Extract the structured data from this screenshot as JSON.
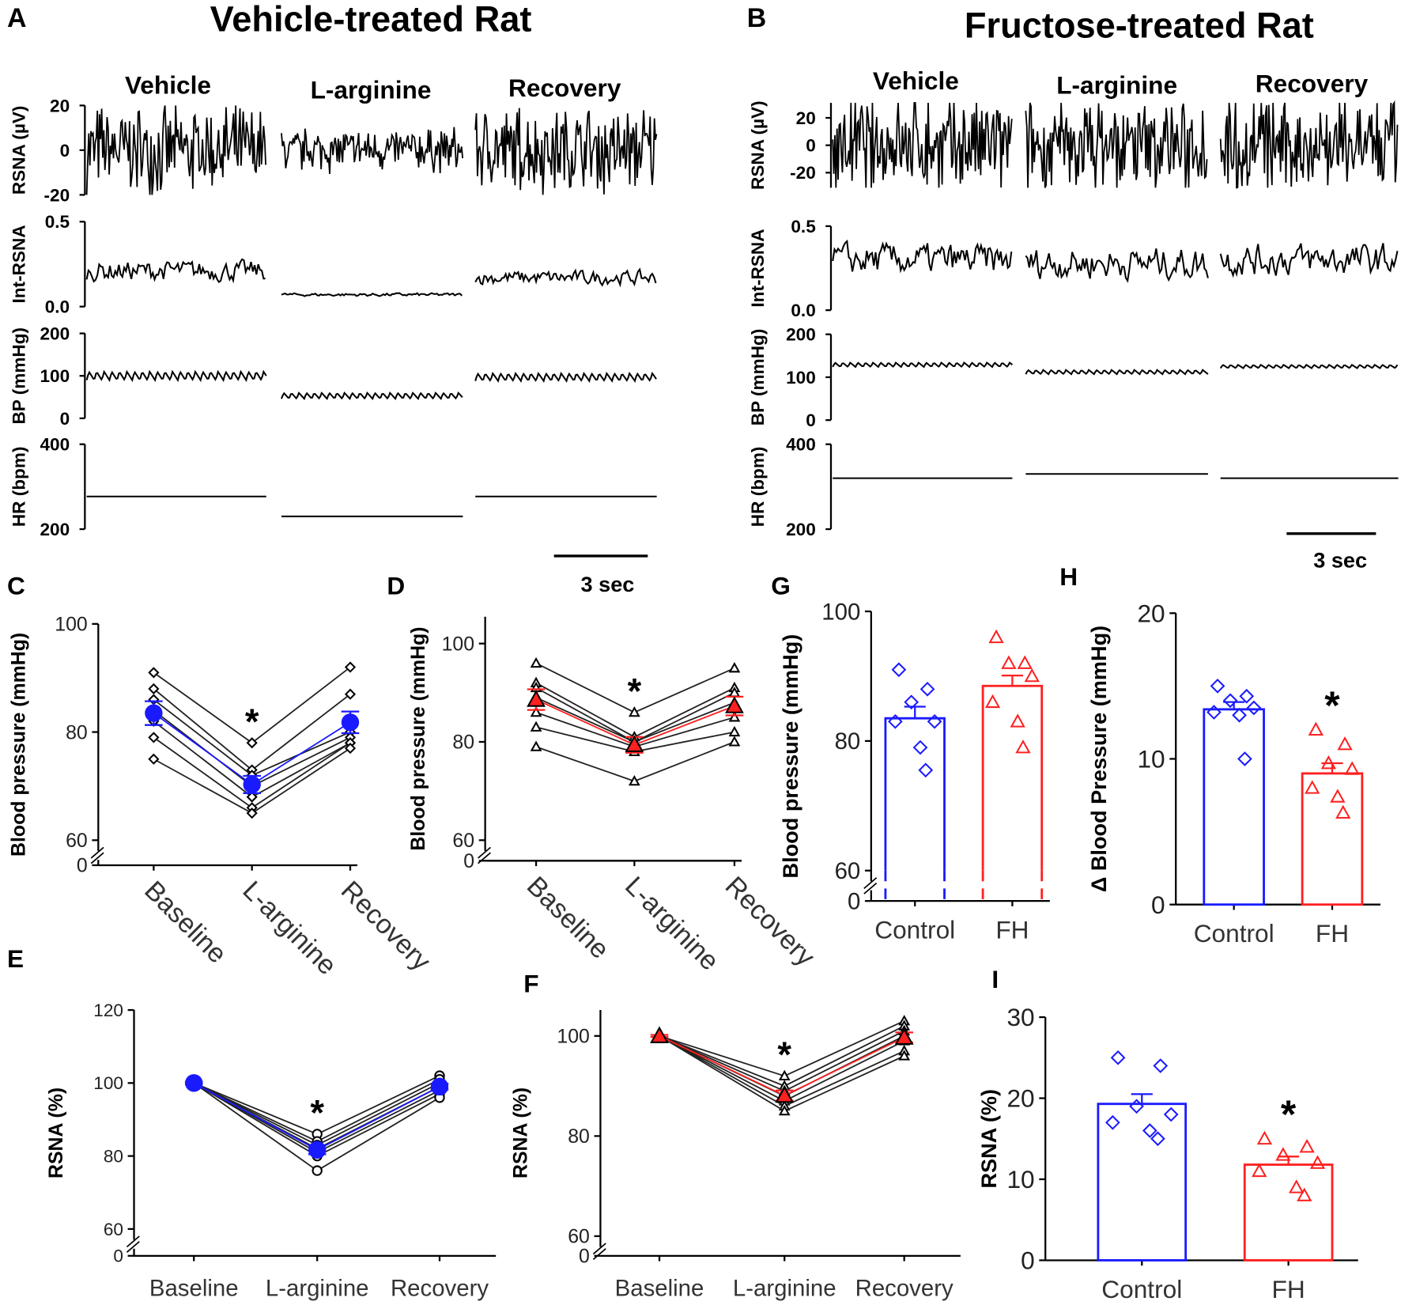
{
  "colors": {
    "control": "#1a1aff",
    "fh": "#ff2020",
    "ink": "#000000"
  },
  "panels": {
    "A": {
      "letter": "A",
      "title": "Vehicle-treated Rat",
      "conditions": [
        "Vehicle",
        "L-arginine",
        "Recovery"
      ],
      "scale_bar": "3 sec"
    },
    "B": {
      "letter": "B",
      "title": "Fructose-treated Rat",
      "conditions": [
        "Vehicle",
        "L-arginine",
        "Recovery"
      ],
      "scale_bar": "3 sec"
    }
  },
  "chart_data": [
    {
      "panel": "A",
      "type": "line",
      "traces": [
        {
          "ylabel": "RSNA (µV)",
          "yrange": [
            -20,
            20
          ],
          "ticks": [
            20,
            0,
            -20
          ],
          "tick_labels": [
            "20",
            "0",
            "-20"
          ],
          "level": [
            0,
            0,
            0
          ],
          "amplitude": [
            16,
            8,
            16
          ]
        },
        {
          "ylabel": "Int-RSNA",
          "yrange": [
            0,
            0.5
          ],
          "ticks": [
            0.5,
            0
          ],
          "tick_labels": [
            "0.5",
            "0.0"
          ],
          "level": [
            0.21,
            0.07,
            0.17
          ],
          "amplitude": [
            0.05,
            0.008,
            0.035
          ]
        },
        {
          "ylabel": "BP (mmHg)",
          "yrange": [
            0,
            200
          ],
          "ticks": [
            200,
            100,
            0
          ],
          "tick_labels": [
            "200",
            "100",
            "0"
          ],
          "level": [
            100,
            53,
            97
          ],
          "amplitude": [
            10,
            7,
            9
          ]
        },
        {
          "ylabel": "HR (bpm)",
          "yrange": [
            200,
            400
          ],
          "ticks": [
            400,
            200
          ],
          "tick_labels": [
            "400",
            "200"
          ],
          "level": [
            277,
            230,
            277
          ],
          "amplitude": [
            0,
            0,
            0
          ]
        }
      ]
    },
    {
      "panel": "B",
      "type": "line",
      "traces": [
        {
          "ylabel": "RSNA (µV)",
          "yrange": [
            -31,
            31
          ],
          "ticks": [
            20,
            0,
            -20
          ],
          "tick_labels": [
            "20",
            "0",
            "-20"
          ],
          "level": [
            0,
            0,
            0
          ],
          "amplitude": [
            30,
            28,
            30
          ]
        },
        {
          "ylabel": "Int-RSNA",
          "yrange": [
            0,
            0.5
          ],
          "ticks": [
            0.5,
            0
          ],
          "tick_labels": [
            "0.5",
            "0.0"
          ],
          "level": [
            0.3,
            0.28,
            0.3
          ],
          "amplitude": [
            0.08,
            0.08,
            0.08
          ]
        },
        {
          "ylabel": "BP (mmHg)",
          "yrange": [
            0,
            200
          ],
          "ticks": [
            200,
            100,
            0
          ],
          "tick_labels": [
            "200",
            "100",
            "0"
          ],
          "level": [
            129,
            112,
            125
          ],
          "amplitude": [
            5,
            5,
            4
          ]
        },
        {
          "ylabel": "HR (bpm)",
          "yrange": [
            200,
            400
          ],
          "ticks": [
            400,
            200
          ],
          "tick_labels": [
            "400",
            "200"
          ],
          "level": [
            320,
            330,
            320
          ],
          "amplitude": [
            0,
            0,
            0
          ]
        }
      ]
    },
    {
      "panel": "C",
      "letter": "C",
      "type": "line",
      "ylabel": "Blood pressure (mmHg)",
      "categories": [
        "Baseline",
        "L-arginine",
        "Recovery"
      ],
      "ticks": [
        100,
        80,
        60,
        0
      ],
      "tick_labels": [
        "100",
        "80",
        "60",
        "0"
      ],
      "axis_break": [
        0,
        60
      ],
      "marker": "diamond",
      "mean_marker": "circle",
      "mean_color": "#1a1aff",
      "subjects": [
        [
          91,
          78,
          92
        ],
        [
          88,
          73,
          87
        ],
        [
          86,
          72,
          80
        ],
        [
          84,
          70,
          79
        ],
        [
          82,
          68,
          78
        ],
        [
          79,
          66,
          78
        ],
        [
          75,
          65,
          77
        ]
      ],
      "mean": [
        83.5,
        70.3,
        81.8
      ],
      "sem": [
        2.2,
        1.6,
        2.0
      ],
      "annotation": "*",
      "annotation_at": "L-arginine"
    },
    {
      "panel": "D",
      "letter": "D",
      "type": "line",
      "ylabel": "Blood pressure (mmHg)",
      "categories": [
        "Baseline",
        "L-arginine",
        "Recovery"
      ],
      "ticks": [
        100,
        80,
        60,
        0
      ],
      "tick_labels": [
        "100",
        "80",
        "60",
        "0"
      ],
      "axis_break": [
        0,
        60
      ],
      "marker": "triangle",
      "mean_marker": "triangle",
      "mean_color": "#ff2020",
      "subjects": [
        [
          96,
          86,
          95
        ],
        [
          92,
          81,
          91
        ],
        [
          91,
          80,
          90
        ],
        [
          89,
          80,
          88
        ],
        [
          86,
          79,
          85
        ],
        [
          83,
          78,
          82
        ],
        [
          79,
          72,
          80
        ]
      ],
      "mean": [
        88.6,
        79.4,
        87.3
      ],
      "sem": [
        2.1,
        1.6,
        1.9
      ],
      "annotation": "*",
      "annotation_at": "L-arginine"
    },
    {
      "panel": "E",
      "letter": "E",
      "type": "line",
      "ylabel": "RSNA (%)",
      "categories": [
        "Baseline",
        "L-arginine",
        "Recovery"
      ],
      "ticks": [
        120,
        100,
        80,
        60,
        0
      ],
      "tick_labels": [
        "120",
        "100",
        "80",
        "60",
        "0"
      ],
      "axis_break": [
        0,
        60
      ],
      "marker": "circle",
      "mean_marker": "circle",
      "mean_color": "#1a1aff",
      "subjects": [
        [
          100,
          86,
          102
        ],
        [
          100,
          84,
          101
        ],
        [
          100,
          83,
          100
        ],
        [
          100,
          82,
          99
        ],
        [
          100,
          81,
          98
        ],
        [
          100,
          80,
          97
        ],
        [
          100,
          76,
          96
        ]
      ],
      "mean": [
        100,
        81.7,
        99
      ],
      "sem": [
        0.3,
        1.2,
        0.8
      ],
      "annotation": "*",
      "annotation_at": "L-arginine"
    },
    {
      "panel": "F",
      "letter": "F",
      "type": "line",
      "ylabel": "RSNA (%)",
      "categories": [
        "Baseline",
        "L-arginine",
        "Recovery"
      ],
      "ticks": [
        100,
        80,
        60,
        0
      ],
      "tick_labels": [
        "100",
        "80",
        "60",
        "0"
      ],
      "axis_break": [
        0,
        60
      ],
      "marker": "triangle",
      "mean_marker": "triangle",
      "mean_color": "#ff2020",
      "subjects": [
        [
          100,
          92,
          103
        ],
        [
          100,
          90,
          102
        ],
        [
          100,
          89,
          101
        ],
        [
          100,
          88,
          100
        ],
        [
          100,
          87,
          99
        ],
        [
          100,
          86,
          97
        ],
        [
          100,
          85,
          96
        ]
      ],
      "mean": [
        100,
        88.1,
        99.7
      ],
      "sem": [
        0.2,
        1.0,
        1.0
      ],
      "annotation": "*",
      "annotation_at": "L-arginine"
    },
    {
      "panel": "G",
      "letter": "G",
      "type": "bar",
      "ylabel": "Blood pressure (mmHg)",
      "categories": [
        "Control",
        "FH"
      ],
      "ticks": [
        100,
        80,
        60,
        0
      ],
      "tick_labels": [
        "100",
        "80",
        "60",
        "0"
      ],
      "axis_break": [
        0,
        60
      ],
      "means": [
        83.5,
        88.5
      ],
      "sem": [
        1.8,
        1.6
      ],
      "points": [
        [
          91,
          88,
          86,
          83,
          83,
          79,
          75.5
        ],
        [
          96,
          92,
          92,
          90,
          86,
          83,
          79
        ]
      ],
      "colors": [
        "#1a1aff",
        "#ff2020"
      ],
      "markers": [
        "diamond",
        "triangle"
      ]
    },
    {
      "panel": "H",
      "letter": "H",
      "type": "bar",
      "ylabel": "Δ Blood Pressure (mmHg)",
      "categories": [
        "Control",
        "FH"
      ],
      "ticks": [
        20,
        10,
        0
      ],
      "tick_labels": [
        "20",
        "10",
        "0"
      ],
      "means": [
        13.4,
        9.0
      ],
      "sem": [
        0.5,
        0.7
      ],
      "points": [
        [
          15,
          14.3,
          14,
          13.5,
          13.2,
          13,
          10
        ],
        [
          12,
          11,
          9.7,
          9.3,
          8,
          7.4,
          6.3
        ]
      ],
      "colors": [
        "#1a1aff",
        "#ff2020"
      ],
      "markers": [
        "diamond",
        "triangle"
      ],
      "annotation": "*",
      "annotation_at": "FH"
    },
    {
      "panel": "I",
      "letter": "I",
      "type": "bar",
      "ylabel": "RSNA (%)",
      "categories": [
        "Control",
        "FH"
      ],
      "ticks": [
        30,
        20,
        10,
        0
      ],
      "tick_labels": [
        "30",
        "20",
        "10",
        "0"
      ],
      "means": [
        19.3,
        11.8
      ],
      "sem": [
        1.2,
        1.0
      ],
      "points": [
        [
          25,
          24,
          19,
          18,
          17,
          16,
          15
        ],
        [
          15,
          14,
          13,
          12,
          11,
          9,
          8
        ]
      ],
      "colors": [
        "#1a1aff",
        "#ff2020"
      ],
      "markers": [
        "diamond",
        "triangle"
      ],
      "annotation": "*",
      "annotation_at": "FH"
    }
  ]
}
